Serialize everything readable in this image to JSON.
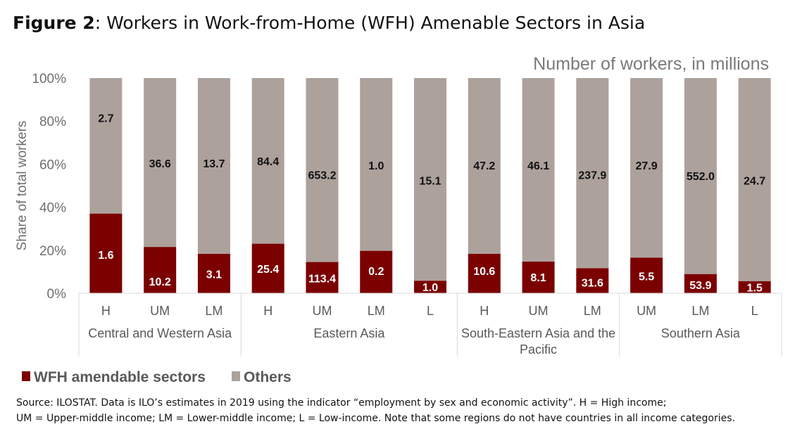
{
  "figure": {
    "label": "Figure 2",
    "title": ": Workers in Work-from-Home (WFH) Amenable Sectors in Asia"
  },
  "source": {
    "line1": "Source: ILOSTAT. Data is ILO’s estimates in 2019 using the indicator “employment by sex and economic activity”. H = High income;",
    "line2": "UM = Upper-middle income; LM = Lower-middle income; L = Low-income. Note that some regions do not have countries in all income categories."
  },
  "chart_data": {
    "type": "bar",
    "stacked": true,
    "annotation": "Number of workers, in millions",
    "ylabel": "Share of total workers",
    "ylim": [
      0,
      100
    ],
    "yticks": [
      "0%",
      "20%",
      "40%",
      "60%",
      "80%",
      "100%"
    ],
    "categories": [
      "H",
      "UM",
      "LM",
      "H",
      "UM",
      "LM",
      "L",
      "H",
      "UM",
      "LM",
      "UM",
      "LM",
      "L"
    ],
    "groups": [
      {
        "name": "Central and Western Asia",
        "count": 3
      },
      {
        "name": "Eastern Asia",
        "count": 4
      },
      {
        "name": "South-Eastern Asia and the Pacific",
        "count": 3
      },
      {
        "name": "Southern Asia",
        "count": 3
      }
    ],
    "series": [
      {
        "name": "WFH amendable sectors",
        "color": "#7b0000",
        "share": [
          37,
          21.5,
          18.3,
          23,
          14.5,
          19.7,
          5.8,
          18.3,
          14.7,
          11.6,
          16.5,
          8.9,
          5.6
        ],
        "labels": [
          "1.6",
          "10.2",
          "3.1",
          "25.4",
          "113.4",
          "0.2",
          "1.0",
          "10.6",
          "8.1",
          "31.6",
          "5.5",
          "53.9",
          "1.5"
        ]
      },
      {
        "name": "Others",
        "color": "#ada19c",
        "share": [
          63,
          78.5,
          81.7,
          77,
          85.5,
          80.3,
          94.2,
          81.7,
          85.3,
          88.4,
          83.5,
          91.1,
          94.4
        ],
        "labels": [
          "2.7",
          "36.6",
          "13.7",
          "84.4",
          "653.2",
          "1.0",
          "15.1",
          "47.2",
          "46.1",
          "237.9",
          "27.9",
          "552.0",
          "24.7"
        ]
      }
    ],
    "legend": "bottom-left",
    "grid": false
  }
}
